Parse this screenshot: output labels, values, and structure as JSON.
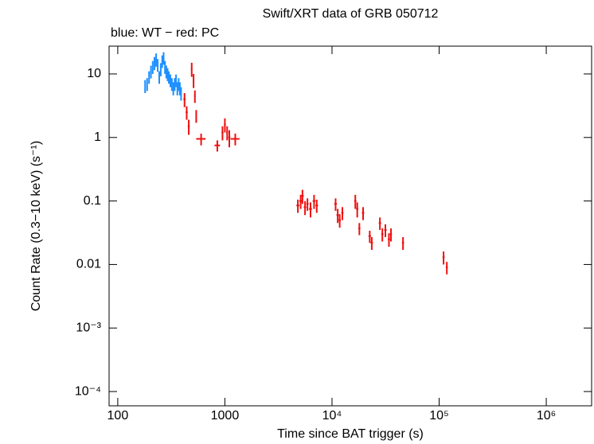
{
  "chart_data": {
    "type": "scatter",
    "title": "Swift/XRT data of GRB 050712",
    "subtitle": "blue: WT − red: PC",
    "x_label": "Time since BAT trigger (s)",
    "y_label": "Count Rate (0.3−10 keV) (s⁻¹)",
    "xlog": true,
    "ylog": true,
    "xlim": [
      83,
      2650000
    ],
    "ylim": [
      5.96e-05,
      27.4
    ],
    "xticks": [
      100,
      1000,
      {
        "value": 10000,
        "label": "10⁴"
      },
      {
        "value": 100000,
        "label": "10⁵"
      },
      {
        "value": 1000000,
        "label": "10⁶"
      }
    ],
    "yticks": [
      10,
      1,
      0.1,
      0.01,
      {
        "value": 0.001,
        "label": "10⁻³"
      },
      {
        "value": 0.0001,
        "label": "10⁻⁴"
      }
    ],
    "series": [
      {
        "color": "#1e90ff",
        "x": [
          180,
          188,
          196,
          204,
          212,
          220,
          228,
          236,
          244,
          252,
          260,
          268,
          276,
          284,
          292,
          300,
          310,
          320,
          330,
          340,
          350,
          360,
          370,
          380,
          390
        ],
        "values": [
          6.5,
          7,
          9,
          11,
          13,
          15,
          17,
          14,
          9,
          12,
          16,
          18,
          13,
          11,
          10,
          9,
          8,
          7,
          6,
          7,
          8,
          6,
          7,
          6,
          5
        ],
        "yerr": [
          1.5,
          1.6,
          2,
          2.5,
          3,
          3.5,
          4,
          3.2,
          2,
          2.8,
          3.6,
          4,
          3,
          2.5,
          2.3,
          2,
          1.8,
          1.6,
          1.4,
          1.6,
          1.8,
          1.4,
          1.6,
          1.4,
          1.2
        ]
      },
      {
        "color": "#ee1111",
        "x": [
          420,
          440,
          460,
          490,
          510,
          525,
          540,
          600,
          850,
          950,
          1000,
          1050,
          1100,
          1250,
          4800,
          5100,
          5300,
          5600,
          5900,
          6300,
          6800,
          7200,
          10800,
          11300,
          11800,
          12500,
          16500,
          17200,
          18000,
          19500,
          22500,
          23500,
          28000,
          29500,
          31500,
          34000,
          35500,
          46000,
          110000,
          118000
        ],
        "values": [
          4,
          2.5,
          1.5,
          12,
          8,
          4.5,
          2.2,
          0.95,
          0.75,
          1.2,
          1.6,
          1.2,
          1.0,
          0.95,
          0.085,
          0.1,
          0.12,
          0.08,
          0.09,
          0.075,
          0.1,
          0.085,
          0.09,
          0.06,
          0.05,
          0.065,
          0.1,
          0.075,
          0.037,
          0.065,
          0.028,
          0.022,
          0.045,
          0.03,
          0.035,
          0.025,
          0.03,
          0.022,
          0.013,
          0.009
        ],
        "yerr": [
          1,
          0.6,
          0.4,
          3,
          2,
          1,
          0.5,
          0.2,
          0.15,
          0.3,
          0.4,
          0.3,
          0.3,
          0.2,
          0.02,
          0.025,
          0.03,
          0.02,
          0.02,
          0.02,
          0.025,
          0.02,
          0.02,
          0.015,
          0.012,
          0.015,
          0.025,
          0.02,
          0.008,
          0.015,
          0.006,
          0.005,
          0.01,
          0.007,
          0.008,
          0.006,
          0.007,
          0.005,
          0.003,
          0.002
        ],
        "xerr": [
          10,
          10,
          10,
          8,
          8,
          8,
          8,
          60,
          50,
          20,
          20,
          20,
          25,
          120,
          150,
          150,
          150,
          150,
          150,
          200,
          200,
          200,
          300,
          300,
          300,
          300,
          400,
          400,
          400,
          500,
          600,
          600,
          700,
          700,
          800,
          800,
          800,
          1000,
          2500,
          2500
        ]
      }
    ]
  }
}
